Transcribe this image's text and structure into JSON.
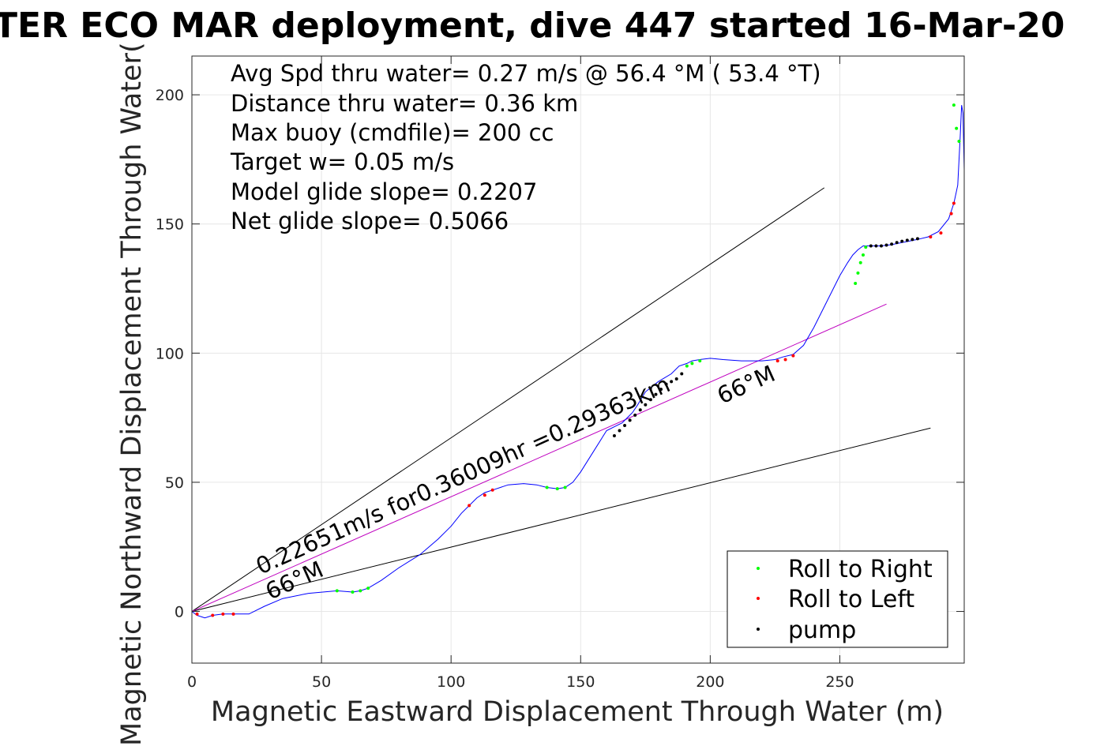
{
  "chart_data": {
    "type": "line",
    "title": "TER ECO MAR deployment, dive 447 started 16-Mar-20",
    "xlabel": "Magnetic Eastward Displacement Through Water (m)",
    "ylabel": "Magnetic Northward Displacement Through Water(",
    "xlim": [
      0,
      298
    ],
    "ylim": [
      -20,
      215
    ],
    "xticks": [
      0,
      50,
      100,
      150,
      200,
      250
    ],
    "yticks": [
      0,
      50,
      100,
      150,
      200
    ],
    "grid": true,
    "stats": [
      "Avg Spd thru water=  0.27 m/s @  56.4 °M ( 53.4 °T)",
      "Distance thru water=  0.36 km",
      "Max buoy (cmdfile)= 200 cc",
      "Target w= 0.05 m/s",
      "Model glide slope= 0.2207",
      "Net glide slope= 0.5066"
    ],
    "annotations": {
      "track_label": "0.22651m/s for0.36009hr =0.29363km",
      "heading_start": "66°M",
      "heading_end": "66°M"
    },
    "legend": {
      "position": "bottom-right",
      "entries": [
        {
          "label": "Roll to Right",
          "color": "#00ff00"
        },
        {
          "label": "Roll to Left",
          "color": "#ff0000"
        },
        {
          "label": "pump",
          "color": "#000000"
        }
      ]
    },
    "colors": {
      "track": "#0000ff",
      "heading_line": "#bf00bf",
      "bound_lines": "#000000"
    },
    "reference_lines": [
      {
        "name": "upper-bound",
        "x": [
          0,
          244
        ],
        "y": [
          0,
          164
        ]
      },
      {
        "name": "lower-bound",
        "x": [
          0,
          285
        ],
        "y": [
          0,
          71
        ]
      },
      {
        "name": "heading-66M",
        "x": [
          0,
          268
        ],
        "y": [
          0,
          119
        ]
      }
    ],
    "series": [
      {
        "x": [
          0,
          2,
          5,
          8,
          12,
          16,
          22,
          28,
          35,
          45,
          56,
          62,
          65,
          68,
          73,
          80,
          88,
          95,
          100,
          104,
          107,
          110,
          113,
          116,
          122,
          128,
          133,
          137,
          141,
          144,
          147,
          150,
          155,
          160,
          164,
          166,
          168,
          170,
          172,
          175,
          180,
          185,
          188,
          191,
          193,
          196,
          200,
          205,
          212,
          220,
          225,
          228,
          232,
          236,
          240,
          245,
          250,
          253,
          255,
          257,
          259,
          262,
          266,
          270,
          275,
          280,
          284,
          288,
          292,
          294,
          295.5,
          296.5,
          297,
          297.5,
          298
        ],
        "y": [
          0,
          -1.5,
          -2.5,
          -1.5,
          -1,
          -1,
          -1,
          2,
          5,
          7,
          8,
          7.5,
          8,
          9,
          12,
          17,
          22,
          28,
          33,
          38,
          41,
          44,
          46,
          47,
          49,
          49.5,
          49,
          48,
          47.5,
          48,
          50,
          54,
          62,
          70,
          72,
          73,
          75,
          77,
          80,
          85,
          89,
          92,
          95,
          96,
          97,
          97.5,
          98,
          97.5,
          97,
          97,
          97.5,
          98.5,
          99.5,
          103,
          110,
          120,
          130,
          135,
          138,
          140,
          141.5,
          141.5,
          141.5,
          142,
          143,
          144,
          145,
          147,
          152,
          158,
          165,
          185,
          196,
          193,
          171
        ]
      }
    ],
    "markers": {
      "roll_right": {
        "x": [
          56,
          62,
          65,
          68,
          137,
          141,
          144,
          191,
          193,
          196,
          256,
          257,
          258,
          259,
          260,
          294,
          295,
          296
        ],
        "y": [
          8,
          7.5,
          8,
          9,
          48,
          47.5,
          48,
          95,
          96,
          97,
          127,
          131,
          135,
          138,
          141,
          196,
          187,
          182
        ]
      },
      "roll_left": {
        "x": [
          2,
          8,
          12,
          16,
          107,
          113,
          116,
          226,
          229,
          232,
          285,
          289,
          293,
          294
        ],
        "y": [
          -1,
          -1.5,
          -1,
          -1,
          41,
          45,
          47,
          97,
          97.5,
          99,
          145,
          146.5,
          154,
          158
        ]
      },
      "pump": {
        "x": [
          163,
          165,
          167,
          169,
          171,
          173,
          175,
          177,
          179,
          181,
          183,
          185,
          187,
          189,
          262,
          264,
          266,
          268,
          270,
          272,
          274,
          276,
          278,
          280
        ],
        "y": [
          68,
          70,
          72,
          74,
          76,
          78,
          80,
          82,
          84,
          86,
          88,
          89,
          90,
          92,
          141.5,
          141.5,
          141.5,
          141.8,
          142.2,
          142.8,
          143.3,
          143.7,
          144,
          144.3
        ]
      }
    }
  }
}
